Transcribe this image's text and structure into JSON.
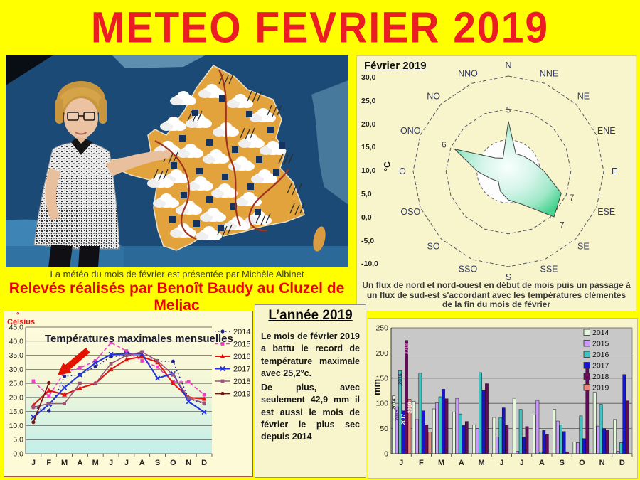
{
  "page_title": "METEO FEVRIER 2019",
  "colors": {
    "page_bg": "#FFFF00",
    "title_red": "#EC1C24",
    "panel_cream": "#F8F4CC",
    "credit_red": "#EE0000"
  },
  "photo": {
    "caption": "La météo du mois de février est présentée par Michèle Albinet",
    "credit": "Relevés réalisés par Benoît Baudy au Cluzel de Meljac"
  },
  "year_panel": {
    "title": "L’année 2019",
    "p1": "Le mois de février 2019 a battu le record de température maximale avec 25,2°c.",
    "p2": "De plus, avec seulement 42,9 mm il est aussi le mois de février le plus sec depuis 2014"
  },
  "chart_data": [
    {
      "id": "wind-radar",
      "type": "radar",
      "title": "Février 2019",
      "axis_label": "°C",
      "scale_ticks": [
        "30,0",
        "25,0",
        "20,0",
        "15,0",
        "10,0",
        "5,0",
        "0,0",
        "-5,0",
        "-10,0"
      ],
      "scale_range": [
        -10,
        30
      ],
      "directions": [
        "N",
        "NNE",
        "NE",
        "ENE",
        "E",
        "ESE",
        "SE",
        "SSE",
        "S",
        "SSO",
        "SO",
        "OSO",
        "O",
        "ONO",
        "NO",
        "NNO"
      ],
      "values": [
        11,
        -2,
        -1,
        1,
        5,
        14,
        17,
        5,
        2,
        -1,
        -4,
        -2,
        3,
        14.5,
        -2,
        -4
      ],
      "point_labels": [
        {
          "dir": "N",
          "text": "5"
        },
        {
          "dir": "ONO",
          "text": "6"
        },
        {
          "dir": "ESE",
          "text": "7"
        },
        {
          "dir": "SE",
          "text": "7"
        }
      ],
      "note": "Un flux de nord et nord-ouest en début de mois puis un passage à un flux de sud-est s'accordant avec les températures clémentes de la fin du mois de février"
    },
    {
      "id": "temperature-lines",
      "type": "line",
      "title": "Températures maximales mensuelles",
      "ylabel_mark": "°",
      "ylabel_word": "Celsius",
      "ylim": [
        0,
        45
      ],
      "yticks": [
        "45,0",
        "40,0",
        "35,0",
        "30,0",
        "25,0",
        "20,0",
        "15,0",
        "10,0",
        "5,0",
        "0,0"
      ],
      "categories": [
        "J",
        "F",
        "M",
        "A",
        "M",
        "J",
        "J",
        "A",
        "S",
        "O",
        "N",
        "D"
      ],
      "series": [
        {
          "name": "2014",
          "color": "#222288",
          "dash": "1.5,3.5",
          "marker": "circle",
          "width": 1.6,
          "values": [
            16.5,
            15.2,
            27.5,
            28,
            31,
            34.5,
            35,
            34.5,
            33,
            32.8,
            19.5,
            17.8
          ]
        },
        {
          "name": "2015",
          "color": "#F03CC8",
          "dash": "5,3",
          "marker": "square",
          "width": 1.6,
          "values": [
            25.8,
            20.5,
            29,
            30.5,
            33,
            39.5,
            36.5,
            33,
            30.8,
            25.5,
            25.5,
            21
          ]
        },
        {
          "name": "2016",
          "color": "#E61212",
          "dash": "",
          "marker": "triangle",
          "width": 2,
          "values": [
            17.3,
            22.5,
            21,
            23.3,
            25,
            30,
            33.5,
            34.5,
            32.5,
            25,
            20,
            19.5
          ]
        },
        {
          "name": "2017",
          "color": "#2233DD",
          "dash": "",
          "marker": "x",
          "width": 2,
          "values": [
            13,
            17.5,
            23.5,
            28,
            32.3,
            35.3,
            35.5,
            35.5,
            26.8,
            28.5,
            18.5,
            14.8
          ]
        },
        {
          "name": "2018",
          "color": "#9A5577",
          "dash": "",
          "marker": "square",
          "width": 1.6,
          "values": [
            16.5,
            17.8,
            17.8,
            25,
            25,
            32,
            35,
            36.2,
            33,
            28,
            19.8,
            18
          ]
        },
        {
          "name": "2019",
          "color": "#7A1414",
          "dash": "",
          "marker": "circle",
          "width": 1.8,
          "values": [
            11.2,
            25.2,
            null,
            null,
            null,
            null,
            null,
            null,
            null,
            null,
            null,
            null
          ]
        }
      ],
      "annotation": {
        "type": "arrow",
        "color": "#E51200",
        "target_month_index": 1,
        "target_series": "2019",
        "target_value": 25.2
      }
    },
    {
      "id": "precipitation-bars",
      "type": "bar",
      "ylabel": "mm",
      "ylim": [
        0,
        250
      ],
      "yticks": [
        "250",
        "200",
        "150",
        "100",
        "50",
        "0"
      ],
      "categories": [
        "J",
        "F",
        "M",
        "A",
        "M",
        "J",
        "J",
        "A",
        "S",
        "O",
        "N",
        "D"
      ],
      "plot_bg": "#C8C8C8",
      "bar_year_labels_month_index": 0,
      "series": [
        {
          "name": "2014",
          "color": "#E6F8DC",
          "label_color": "#333333",
          "values": [
            115,
            104,
            89,
            83,
            57,
            72,
            110,
            77,
            88,
            23,
            122,
            68
          ]
        },
        {
          "name": "2015",
          "color": "#CC99FF",
          "label_color": "#4A2A6A",
          "values": [
            93,
            68,
            101,
            110,
            50,
            33,
            5,
            106,
            65,
            22,
            55,
            5
          ]
        },
        {
          "name": "2016",
          "color": "#3CC3C3",
          "label_color": "#113355",
          "values": [
            165,
            160,
            113,
            79,
            161,
            72,
            88,
            4,
            57,
            75,
            98,
            22
          ]
        },
        {
          "name": "2017",
          "color": "#1616CE",
          "label_color": "#FFFFFF",
          "values": [
            85,
            85,
            128,
            56,
            126,
            91,
            33,
            46,
            44,
            30,
            50,
            157
          ]
        },
        {
          "name": "2018",
          "color": "#650B5C",
          "label_color": "#EE66CC",
          "values": [
            225,
            57,
            109,
            64,
            139,
            56,
            54,
            38,
            4,
            178,
            46,
            105
          ]
        },
        {
          "name": "2019",
          "color": "#F08478",
          "label_color": "#FFFFFF",
          "values": [
            108,
            43,
            null,
            null,
            null,
            null,
            null,
            null,
            null,
            null,
            null,
            null
          ]
        }
      ]
    }
  ]
}
